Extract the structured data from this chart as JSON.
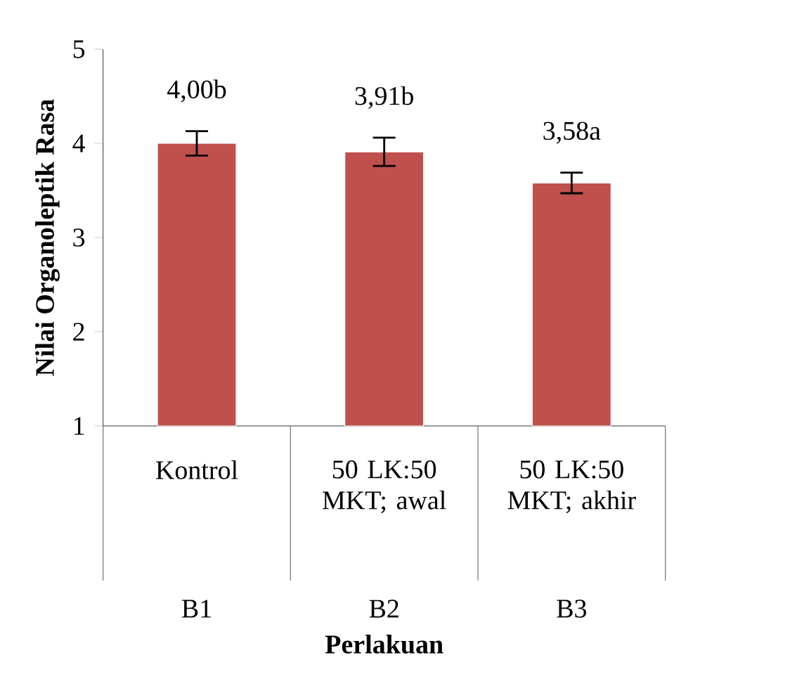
{
  "chart_data": {
    "type": "bar",
    "xlabel": "Perlakuan",
    "ylabel": "Nilai Organoleptik Rasa",
    "categories": [
      "Kontrol",
      "50 LK:50 MKT; awal",
      "50 LK:50 MKT; akhir"
    ],
    "values": [
      4.0,
      3.91,
      3.58
    ],
    "errors": [
      0.13,
      0.15,
      0.11
    ],
    "value_labels": [
      "4,00b",
      "3,91b",
      "3,58a"
    ],
    "color": "#c0504d",
    "ylim": [
      1,
      5
    ],
    "yticks": [
      1,
      2,
      3,
      4,
      5
    ],
    "annotations": [
      "B1",
      "B2",
      "B3"
    ]
  }
}
